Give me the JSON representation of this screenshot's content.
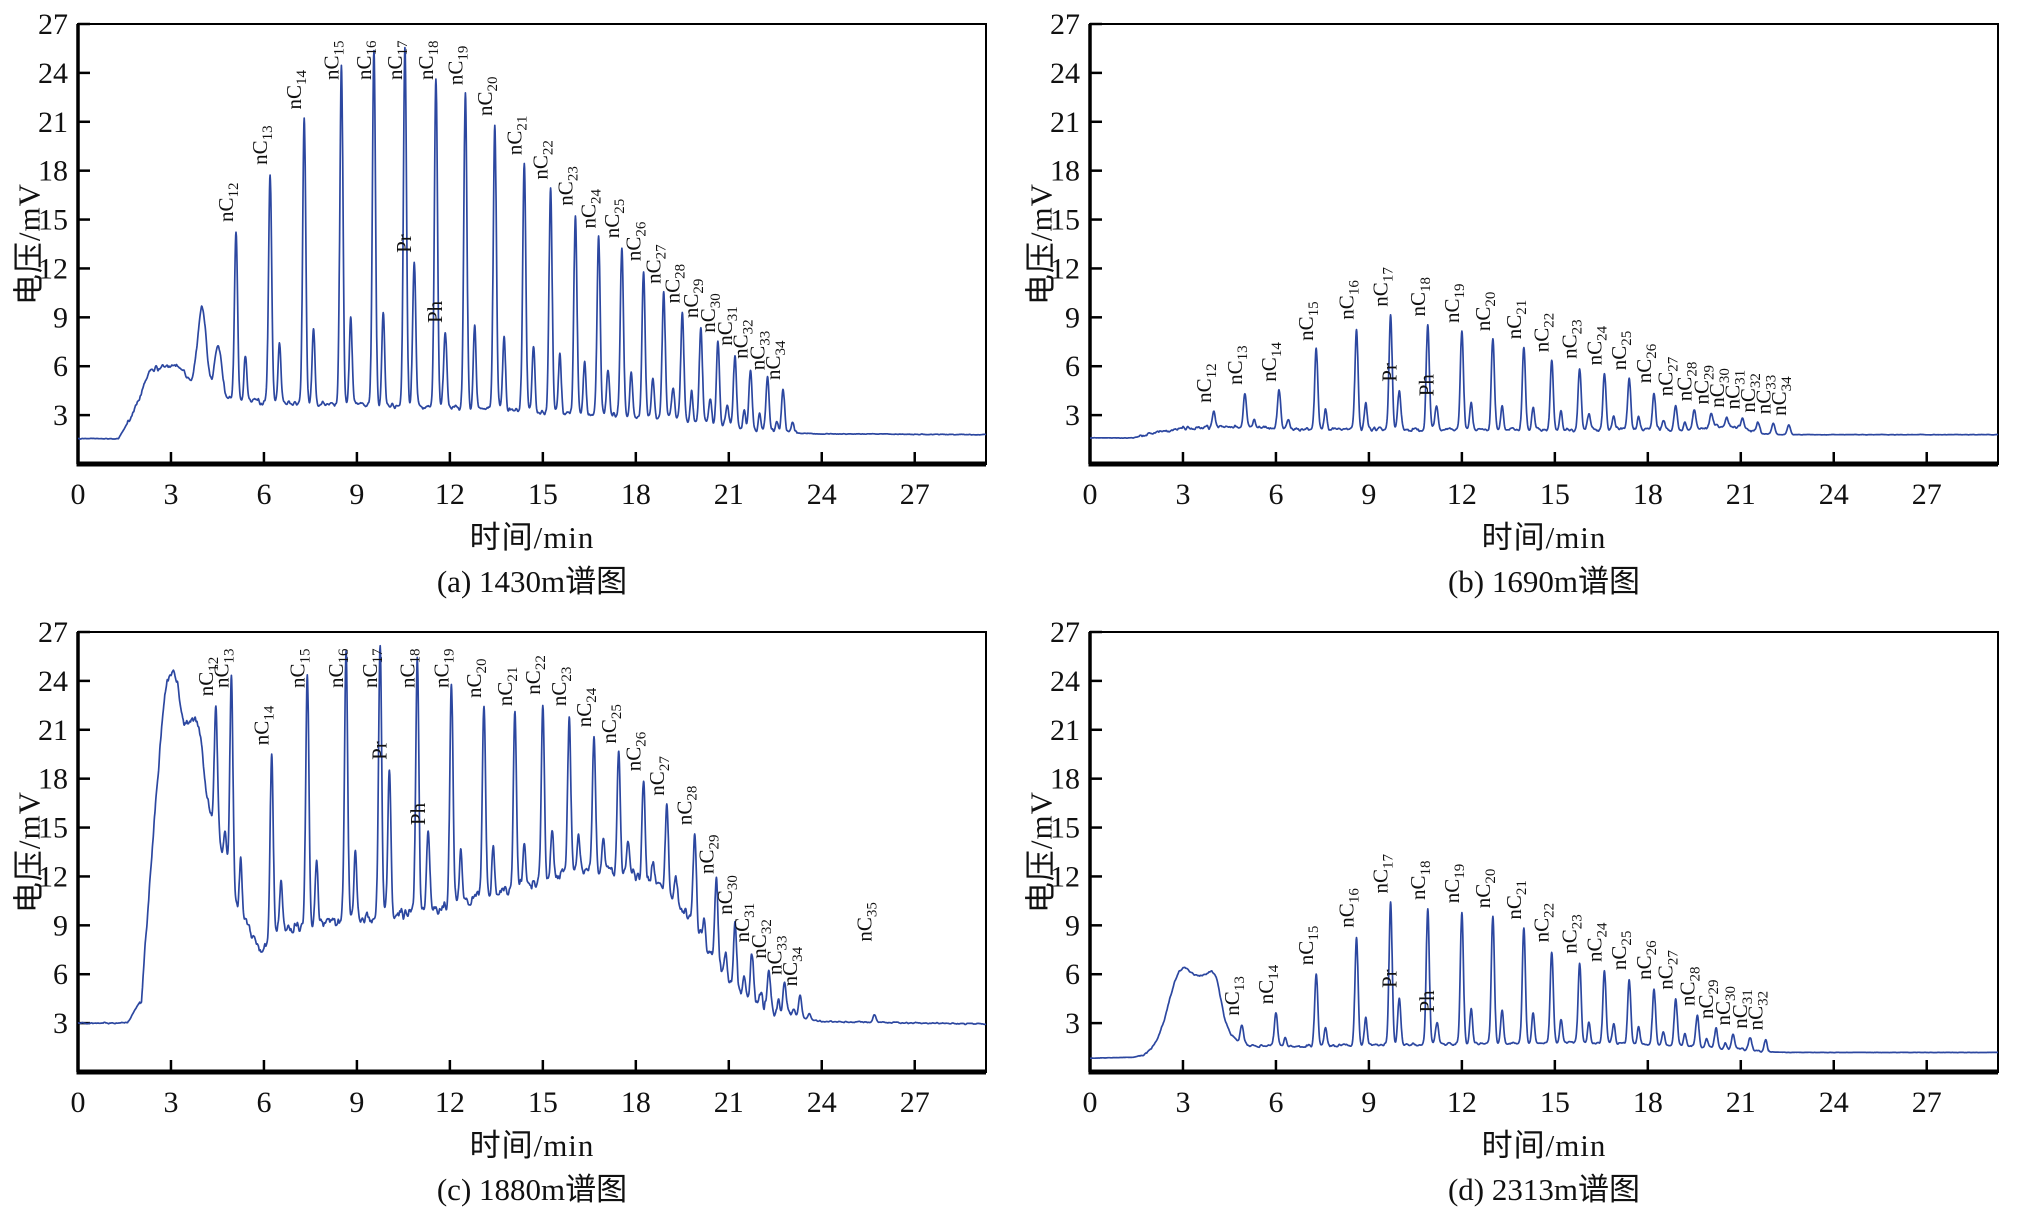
{
  "figure": {
    "ylabel": "电压/mV",
    "xlabel": "时间/min",
    "line_color": "#2c47a0",
    "axis_color": "#000000",
    "text_color": "#111111",
    "background": "#ffffff"
  },
  "chart_data": [
    {
      "id": "a",
      "type": "line",
      "caption": "(a) 1430m谱图",
      "xlabel": "时间/min",
      "ylabel": "电压/mV",
      "xlim": [
        0,
        29.3
      ],
      "ylim": [
        0,
        27
      ],
      "xticks": [
        0,
        3,
        6,
        9,
        12,
        15,
        18,
        21,
        24,
        27
      ],
      "yticks": [
        3,
        6,
        9,
        12,
        15,
        18,
        21,
        24,
        27
      ],
      "noise": 0.22,
      "noise_range": [
        1.6,
        23.2
      ],
      "baseline": [
        [
          0,
          1.55
        ],
        [
          1.3,
          1.55
        ],
        [
          1.75,
          3.0
        ],
        [
          2.3,
          5.6
        ],
        [
          3.35,
          5.5
        ],
        [
          3.8,
          4.6
        ],
        [
          4.35,
          4.1
        ],
        [
          5.0,
          3.9
        ],
        [
          6,
          3.8
        ],
        [
          8,
          3.7
        ],
        [
          10,
          3.6
        ],
        [
          12,
          3.5
        ],
        [
          14,
          3.3
        ],
        [
          16,
          3.1
        ],
        [
          17.5,
          3.0
        ],
        [
          19,
          2.8
        ],
        [
          20,
          2.6
        ],
        [
          21,
          2.3
        ],
        [
          22,
          2.0
        ],
        [
          23,
          1.9
        ],
        [
          24,
          1.85
        ],
        [
          29.3,
          1.8
        ]
      ],
      "humps": [
        {
          "x": 4.0,
          "h": 5.2,
          "w": 0.14
        },
        {
          "x": 4.52,
          "h": 3.1,
          "w": 0.12
        },
        {
          "x": 3.0,
          "h": 0.5,
          "w": 0.45
        }
      ],
      "peaks": [
        {
          "label": "nC",
          "sub": "12",
          "x": 5.1,
          "h": 14.3
        },
        {
          "label": "nC",
          "sub": "13",
          "x": 6.2,
          "h": 17.8
        },
        {
          "label": "nC",
          "sub": "14",
          "x": 7.3,
          "h": 21.2
        },
        {
          "label": "nC",
          "sub": "15",
          "x": 8.5,
          "h": 24.5
        },
        {
          "label": "nC",
          "sub": "16",
          "x": 9.55,
          "h": 25.4
        },
        {
          "label": "nC",
          "sub": "17",
          "x": 10.55,
          "h": 25.6
        },
        {
          "label": "Pr",
          "x": 10.85,
          "h": 12.4
        },
        {
          "label": "nC",
          "sub": "18",
          "x": 11.55,
          "h": 23.8
        },
        {
          "label": "Ph",
          "x": 11.85,
          "h": 8.1
        },
        {
          "label": "nC",
          "sub": "19",
          "x": 12.5,
          "h": 22.7
        },
        {
          "label": "nC",
          "sub": "20",
          "x": 13.45,
          "h": 20.8
        },
        {
          "label": "nC",
          "sub": "21",
          "x": 14.4,
          "h": 18.4
        },
        {
          "label": "nC",
          "sub": "22",
          "x": 15.25,
          "h": 16.9
        },
        {
          "label": "nC",
          "sub": "23",
          "x": 16.05,
          "h": 15.3
        },
        {
          "label": "nC",
          "sub": "24",
          "x": 16.8,
          "h": 13.9
        },
        {
          "label": "nC",
          "sub": "25",
          "x": 17.55,
          "h": 13.3
        },
        {
          "label": "nC",
          "sub": "26",
          "x": 18.25,
          "h": 11.9
        },
        {
          "label": "nC",
          "sub": "27",
          "x": 18.9,
          "h": 10.5
        },
        {
          "label": "nC",
          "sub": "28",
          "x": 19.5,
          "h": 9.3
        },
        {
          "label": "nC",
          "sub": "29",
          "x": 20.1,
          "h": 8.4
        },
        {
          "label": "nC",
          "sub": "30",
          "x": 20.65,
          "h": 7.5
        },
        {
          "label": "nC",
          "sub": "31",
          "x": 21.2,
          "h": 6.7
        },
        {
          "label": "nC",
          "sub": "32",
          "x": 21.7,
          "h": 5.9
        },
        {
          "label": "nC",
          "sub": "33",
          "x": 22.25,
          "h": 5.2
        },
        {
          "label": "nC",
          "sub": "34",
          "x": 22.75,
          "h": 4.6
        }
      ]
    },
    {
      "id": "b",
      "type": "line",
      "caption": "(b) 1690m谱图",
      "xlabel": "时间/min",
      "ylabel": "电压/mV",
      "xlim": [
        0,
        29.3
      ],
      "ylim": [
        0,
        27
      ],
      "xticks": [
        0,
        3,
        6,
        9,
        12,
        15,
        18,
        21,
        24,
        27
      ],
      "yticks": [
        3,
        6,
        9,
        12,
        15,
        18,
        21,
        24,
        27
      ],
      "noise": 0.14,
      "noise_range": [
        1.6,
        21.9
      ],
      "baseline": [
        [
          0,
          1.6
        ],
        [
          1.4,
          1.6
        ],
        [
          2.0,
          1.9
        ],
        [
          3.0,
          2.2
        ],
        [
          4.5,
          2.3
        ],
        [
          7,
          2.15
        ],
        [
          12,
          2.1
        ],
        [
          18,
          2.1
        ],
        [
          19.3,
          2.05
        ],
        [
          20.2,
          2.35
        ],
        [
          20.9,
          2.2
        ],
        [
          21.6,
          1.9
        ],
        [
          22.3,
          1.8
        ],
        [
          29.3,
          1.8
        ]
      ],
      "humps": [],
      "peaks": [
        {
          "label": "nC",
          "sub": "12",
          "x": 4.0,
          "h": 3.2
        },
        {
          "label": "nC",
          "sub": "13",
          "x": 5.0,
          "h": 4.3
        },
        {
          "label": "nC",
          "sub": "14",
          "x": 6.1,
          "h": 4.5
        },
        {
          "label": "nC",
          "sub": "15",
          "x": 7.3,
          "h": 7.0
        },
        {
          "label": "nC",
          "sub": "16",
          "x": 8.6,
          "h": 8.3
        },
        {
          "label": "nC",
          "sub": "17",
          "x": 9.7,
          "h": 9.1
        },
        {
          "label": "Pr",
          "x": 9.98,
          "h": 4.5
        },
        {
          "label": "nC",
          "sub": "18",
          "x": 10.9,
          "h": 8.5
        },
        {
          "label": "Ph",
          "x": 11.18,
          "h": 3.6
        },
        {
          "label": "nC",
          "sub": "19",
          "x": 12.0,
          "h": 8.1
        },
        {
          "label": "nC",
          "sub": "20",
          "x": 13.0,
          "h": 7.6
        },
        {
          "label": "nC",
          "sub": "21",
          "x": 14.0,
          "h": 7.1
        },
        {
          "label": "nC",
          "sub": "22",
          "x": 14.9,
          "h": 6.3
        },
        {
          "label": "nC",
          "sub": "23",
          "x": 15.8,
          "h": 5.9
        },
        {
          "label": "nC",
          "sub": "24",
          "x": 16.6,
          "h": 5.5
        },
        {
          "label": "nC",
          "sub": "25",
          "x": 17.4,
          "h": 5.2
        },
        {
          "label": "nC",
          "sub": "26",
          "x": 18.2,
          "h": 4.4
        },
        {
          "label": "nC",
          "sub": "27",
          "x": 18.9,
          "h": 3.6
        },
        {
          "label": "nC",
          "sub": "28",
          "x": 19.5,
          "h": 3.3
        },
        {
          "label": "nC",
          "sub": "29",
          "x": 20.05,
          "h": 3.1
        },
        {
          "label": "nC",
          "sub": "30",
          "x": 20.55,
          "h": 2.9
        },
        {
          "label": "nC",
          "sub": "31",
          "x": 21.05,
          "h": 2.8
        },
        {
          "label": "nC",
          "sub": "32",
          "x": 21.55,
          "h": 2.6
        },
        {
          "label": "nC",
          "sub": "33",
          "x": 22.05,
          "h": 2.5
        },
        {
          "label": "nC",
          "sub": "34",
          "x": 22.55,
          "h": 2.4
        }
      ]
    },
    {
      "id": "c",
      "type": "line",
      "caption": "(c) 1880m谱图",
      "xlabel": "时间/min",
      "ylabel": "电压/mV",
      "xlim": [
        0,
        29.3
      ],
      "ylim": [
        0,
        27
      ],
      "xticks": [
        0,
        3,
        6,
        9,
        12,
        15,
        18,
        21,
        24,
        27
      ],
      "yticks": [
        3,
        6,
        9,
        12,
        15,
        18,
        21,
        24,
        27
      ],
      "noise": 0.45,
      "noise_range": [
        2.0,
        23.0
      ],
      "baseline": [
        [
          0,
          3.0
        ],
        [
          1.6,
          3.0
        ],
        [
          2.05,
          4.5
        ],
        [
          2.5,
          16
        ],
        [
          2.8,
          20
        ],
        [
          3.35,
          19
        ],
        [
          3.6,
          18.5
        ],
        [
          4.15,
          15.5
        ],
        [
          4.6,
          14
        ],
        [
          5.15,
          10
        ],
        [
          5.9,
          7.5
        ],
        [
          6.4,
          8.6
        ],
        [
          7,
          8.8
        ],
        [
          8,
          9.2
        ],
        [
          9,
          9.4
        ],
        [
          10,
          9.6
        ],
        [
          11,
          9.8
        ],
        [
          12,
          10.2
        ],
        [
          13,
          10.8
        ],
        [
          14,
          11.2
        ],
        [
          15,
          11.8
        ],
        [
          16,
          12.3
        ],
        [
          17,
          12.4
        ],
        [
          18,
          12.0
        ],
        [
          19,
          11.2
        ],
        [
          19.8,
          9.5
        ],
        [
          20.5,
          6.8
        ],
        [
          21.2,
          5.0
        ],
        [
          22,
          4.1
        ],
        [
          22.8,
          3.5
        ],
        [
          24,
          3.1
        ],
        [
          29.3,
          2.95
        ]
      ],
      "humps": [
        {
          "x": 3.05,
          "h": 5.0,
          "w": 0.28
        },
        {
          "x": 3.85,
          "h": 4.2,
          "w": 0.22
        }
      ],
      "peaks": [
        {
          "label": "nC",
          "sub": "12",
          "x": 4.45,
          "h": 22.5
        },
        {
          "label": "nC",
          "sub": "13",
          "x": 4.95,
          "h": 24.3
        },
        {
          "label": "nC",
          "sub": "14",
          "x": 6.25,
          "h": 19.5
        },
        {
          "label": "nC",
          "sub": "15",
          "x": 7.4,
          "h": 24.3
        },
        {
          "label": "nC",
          "sub": "16",
          "x": 8.65,
          "h": 25.8
        },
        {
          "label": "nC",
          "sub": "17",
          "x": 9.75,
          "h": 26.3
        },
        {
          "label": "Pr",
          "x": 10.05,
          "h": 18.6
        },
        {
          "label": "nC",
          "sub": "18",
          "x": 10.95,
          "h": 25.2
        },
        {
          "label": "Ph",
          "x": 11.3,
          "h": 14.6
        },
        {
          "label": "nC",
          "sub": "19",
          "x": 12.05,
          "h": 23.6
        },
        {
          "label": "nC",
          "sub": "20",
          "x": 13.1,
          "h": 22.4
        },
        {
          "label": "nC",
          "sub": "21",
          "x": 14.1,
          "h": 21.9
        },
        {
          "label": "nC",
          "sub": "22",
          "x": 15.0,
          "h": 22.6
        },
        {
          "label": "nC",
          "sub": "23",
          "x": 15.85,
          "h": 21.9
        },
        {
          "label": "nC",
          "sub": "24",
          "x": 16.65,
          "h": 20.6
        },
        {
          "label": "nC",
          "sub": "25",
          "x": 17.45,
          "h": 19.6
        },
        {
          "label": "nC",
          "sub": "26",
          "x": 18.25,
          "h": 17.9
        },
        {
          "label": "nC",
          "sub": "27",
          "x": 19.0,
          "h": 16.4
        },
        {
          "label": "nC",
          "sub": "28",
          "x": 19.9,
          "h": 14.6
        },
        {
          "label": "nC",
          "sub": "29",
          "x": 20.6,
          "h": 11.6
        },
        {
          "label": "nC",
          "sub": "30",
          "x": 21.2,
          "h": 9.1
        },
        {
          "label": "nC",
          "sub": "31",
          "x": 21.75,
          "h": 7.4
        },
        {
          "label": "nC",
          "sub": "32",
          "x": 22.3,
          "h": 6.4
        },
        {
          "label": "nC",
          "sub": "33",
          "x": 22.8,
          "h": 5.4
        },
        {
          "label": "nC",
          "sub": "34",
          "x": 23.3,
          "h": 4.7
        },
        {
          "label": "nC",
          "sub": "35",
          "x": 25.7,
          "h": 3.5,
          "ly": 8.0
        }
      ]
    },
    {
      "id": "d",
      "type": "line",
      "caption": "(d) 2313m谱图",
      "xlabel": "时间/min",
      "ylabel": "电压/mV",
      "xlim": [
        0,
        29.3
      ],
      "ylim": [
        0,
        27
      ],
      "xticks": [
        0,
        3,
        6,
        9,
        12,
        15,
        18,
        21,
        24,
        27
      ],
      "yticks": [
        3,
        6,
        9,
        12,
        15,
        18,
        21,
        24,
        27
      ],
      "noise": 0.1,
      "noise_range": [
        1.6,
        21.9
      ],
      "baseline": [
        [
          0,
          0.85
        ],
        [
          1.4,
          0.9
        ],
        [
          1.9,
          1.1
        ],
        [
          4.3,
          1.4
        ],
        [
          4.6,
          2.0
        ],
        [
          5.2,
          1.6
        ],
        [
          7,
          1.6
        ],
        [
          9,
          1.65
        ],
        [
          11,
          1.7
        ],
        [
          13,
          1.75
        ],
        [
          15,
          1.8
        ],
        [
          17,
          1.75
        ],
        [
          19,
          1.6
        ],
        [
          20,
          1.5
        ],
        [
          21,
          1.4
        ],
        [
          21.7,
          1.25
        ],
        [
          22.5,
          1.2
        ],
        [
          29.3,
          1.2
        ]
      ],
      "humps": [
        {
          "x": 2.95,
          "h": 4.9,
          "w": 0.42
        },
        {
          "x": 3.75,
          "h": 3.3,
          "w": 0.33
        },
        {
          "x": 4.1,
          "h": 2.2,
          "w": 0.22
        }
      ],
      "peaks": [
        {
          "label": "nC",
          "sub": "13",
          "x": 4.9,
          "h": 2.9
        },
        {
          "label": "nC",
          "sub": "14",
          "x": 6.0,
          "h": 3.6
        },
        {
          "label": "nC",
          "sub": "15",
          "x": 7.3,
          "h": 6.0
        },
        {
          "label": "nC",
          "sub": "16",
          "x": 8.6,
          "h": 8.3
        },
        {
          "label": "nC",
          "sub": "17",
          "x": 9.7,
          "h": 10.4
        },
        {
          "label": "Pr",
          "x": 9.98,
          "h": 4.6
        },
        {
          "label": "nC",
          "sub": "18",
          "x": 10.9,
          "h": 10.0
        },
        {
          "label": "Ph",
          "x": 11.2,
          "h": 3.1
        },
        {
          "label": "nC",
          "sub": "19",
          "x": 12.0,
          "h": 9.8
        },
        {
          "label": "nC",
          "sub": "20",
          "x": 13.0,
          "h": 9.5
        },
        {
          "label": "nC",
          "sub": "21",
          "x": 14.0,
          "h": 8.8
        },
        {
          "label": "nC",
          "sub": "22",
          "x": 14.9,
          "h": 7.4
        },
        {
          "label": "nC",
          "sub": "23",
          "x": 15.8,
          "h": 6.7
        },
        {
          "label": "nC",
          "sub": "24",
          "x": 16.6,
          "h": 6.2
        },
        {
          "label": "nC",
          "sub": "25",
          "x": 17.4,
          "h": 5.7
        },
        {
          "label": "nC",
          "sub": "26",
          "x": 18.2,
          "h": 5.1
        },
        {
          "label": "nC",
          "sub": "27",
          "x": 18.9,
          "h": 4.5
        },
        {
          "label": "nC",
          "sub": "28",
          "x": 19.6,
          "h": 3.5
        },
        {
          "label": "nC",
          "sub": "29",
          "x": 20.2,
          "h": 2.7
        },
        {
          "label": "nC",
          "sub": "30",
          "x": 20.75,
          "h": 2.3
        },
        {
          "label": "nC",
          "sub": "31",
          "x": 21.3,
          "h": 2.1
        },
        {
          "label": "nC",
          "sub": "32",
          "x": 21.8,
          "h": 2.0
        }
      ]
    }
  ]
}
